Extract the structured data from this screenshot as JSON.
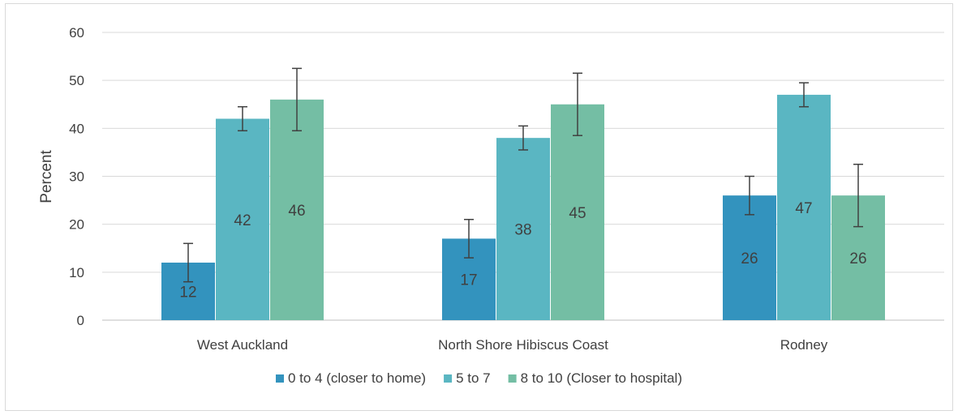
{
  "chart_data": {
    "type": "bar",
    "ylabel": "Percent",
    "ylim": [
      0,
      60
    ],
    "yticks": [
      0,
      10,
      20,
      30,
      40,
      50,
      60
    ],
    "grid": true,
    "legend_position": "bottom",
    "categories": [
      "West Auckland",
      "North Shore Hibiscus Coast",
      "Rodney"
    ],
    "series": [
      {
        "name": "0 to 4 (closer to home)",
        "color": "#3393be",
        "values": [
          12,
          17,
          26
        ],
        "error_low": [
          8,
          13,
          22
        ],
        "error_high": [
          16,
          21,
          30
        ]
      },
      {
        "name": "5 to 7",
        "color": "#5ab6c2",
        "values": [
          42,
          38,
          47
        ],
        "error_low": [
          39.5,
          35.5,
          44.5
        ],
        "error_high": [
          44.5,
          40.5,
          49.5
        ]
      },
      {
        "name": "8 to 10 (Closer to hospital)",
        "color": "#74bea4",
        "values": [
          46,
          45,
          26
        ],
        "error_low": [
          39.5,
          38.5,
          19.5
        ],
        "error_high": [
          52.5,
          51.5,
          32.5
        ]
      }
    ]
  }
}
